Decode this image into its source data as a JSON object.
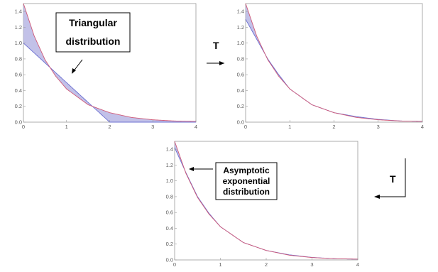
{
  "chart_data": [
    {
      "type": "area",
      "title": "",
      "xlabel": "",
      "ylabel": "",
      "xlim": [
        0,
        4
      ],
      "ylim": [
        0,
        1.5
      ],
      "x_ticks": [
        "0",
        "1",
        "2",
        "3",
        "4"
      ],
      "y_ticks": [
        "0.0",
        "0.2",
        "0.4",
        "0.6",
        "0.8",
        "1.0",
        "1.2",
        "1.4"
      ],
      "series": [
        {
          "x": [
            0,
            2,
            4
          ],
          "y": [
            1.0,
            0.0,
            0.0
          ]
        },
        {
          "x": [
            0,
            0.25,
            0.5,
            0.75,
            1,
            1.5,
            2,
            2.5,
            3,
            3.5,
            4
          ],
          "y": [
            1.5,
            1.09,
            0.79,
            0.58,
            0.42,
            0.22,
            0.12,
            0.06,
            0.03,
            0.015,
            0.01
          ]
        }
      ],
      "annotation": "Triangular\ndistribution"
    },
    {
      "type": "area",
      "title": "",
      "xlabel": "",
      "ylabel": "",
      "xlim": [
        0,
        4
      ],
      "ylim": [
        0,
        1.5
      ],
      "x_ticks": [
        "0",
        "1",
        "2",
        "3",
        "4"
      ],
      "y_ticks": [
        "0.0",
        "0.2",
        "0.4",
        "0.6",
        "0.8",
        "1.0",
        "1.2",
        "1.4"
      ],
      "series": [
        {
          "x": [
            0,
            0.25,
            0.5,
            0.75,
            1,
            1.5,
            2,
            2.5,
            3,
            3.5,
            4
          ],
          "y": [
            1.3,
            1.05,
            0.8,
            0.6,
            0.42,
            0.22,
            0.12,
            0.07,
            0.035,
            0.015,
            0.01
          ]
        },
        {
          "x": [
            0,
            0.25,
            0.5,
            0.75,
            1,
            1.5,
            2,
            2.5,
            3,
            3.5,
            4
          ],
          "y": [
            1.5,
            1.09,
            0.79,
            0.58,
            0.42,
            0.22,
            0.12,
            0.06,
            0.03,
            0.015,
            0.01
          ]
        }
      ]
    },
    {
      "type": "area",
      "title": "",
      "xlabel": "",
      "ylabel": "",
      "xlim": [
        0,
        4
      ],
      "ylim": [
        0,
        1.5
      ],
      "x_ticks": [
        "0",
        "1",
        "2",
        "3",
        "4"
      ],
      "y_ticks": [
        "0.0",
        "0.2",
        "0.4",
        "0.6",
        "0.8",
        "1.0",
        "1.2",
        "1.4"
      ],
      "series": [
        {
          "x": [
            0,
            0.25,
            0.5,
            0.75,
            1,
            1.5,
            2,
            2.5,
            3,
            3.5,
            4
          ],
          "y": [
            1.42,
            1.1,
            0.8,
            0.59,
            0.42,
            0.22,
            0.12,
            0.065,
            0.032,
            0.015,
            0.01
          ]
        },
        {
          "x": [
            0,
            0.25,
            0.5,
            0.75,
            1,
            1.5,
            2,
            2.5,
            3,
            3.5,
            4
          ],
          "y": [
            1.5,
            1.09,
            0.79,
            0.58,
            0.42,
            0.22,
            0.12,
            0.06,
            0.03,
            0.015,
            0.01
          ]
        }
      ],
      "annotation": "Asymptotic\nexponential\ndistribution"
    }
  ],
  "operators": [
    "T",
    "T"
  ],
  "colors": {
    "fill": "#b7b6e4",
    "line_a": "#6b6fd1",
    "line_b": "#d05a78",
    "axis": "#9a9a9a"
  }
}
